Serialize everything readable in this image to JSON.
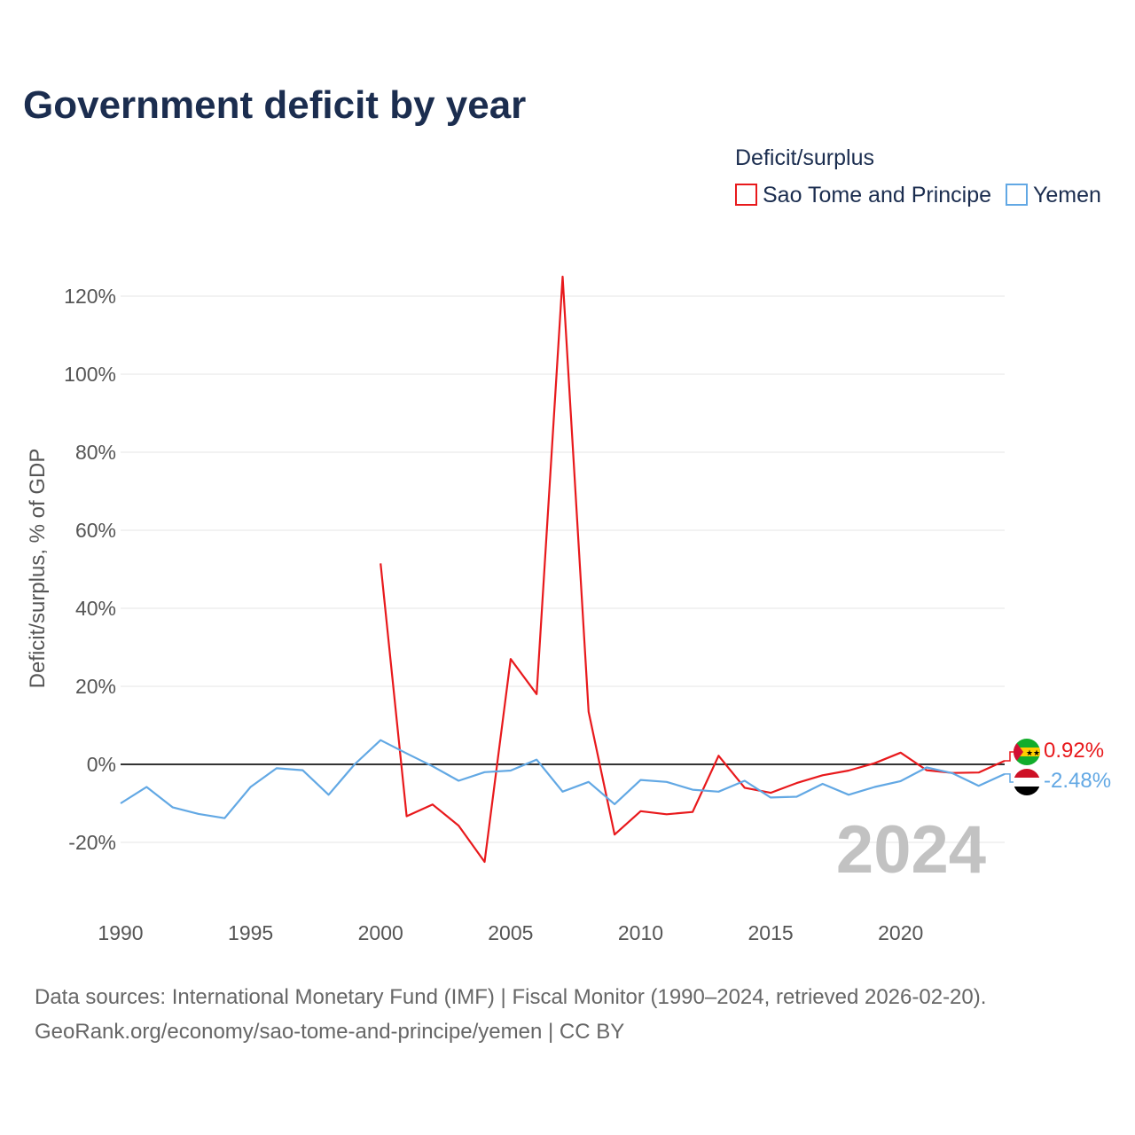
{
  "chart_data": {
    "type": "line",
    "title": "Government deficit by year",
    "legend_title": "Deficit/surplus",
    "legend_position": "top-right",
    "xlabel": "",
    "ylabel": "Deficit/surplus, % of GDP",
    "xlim": [
      1990,
      2024
    ],
    "ylim": [
      -25,
      125
    ],
    "x_ticks": [
      1990,
      1995,
      2000,
      2005,
      2010,
      2015,
      2020
    ],
    "x_tick_labels": [
      "1990",
      "1995",
      "2000",
      "2005",
      "2010",
      "2015",
      "2020"
    ],
    "y_ticks": [
      -20,
      0,
      20,
      40,
      60,
      80,
      100,
      120
    ],
    "y_tick_labels": [
      "-20%",
      "0%",
      "20%",
      "40%",
      "60%",
      "80%",
      "100%",
      "120%"
    ],
    "grid": true,
    "highlight_year": "2024",
    "series": [
      {
        "name": "Sao Tome and Principe",
        "color": "#e8191c",
        "flag_icon": "sao-tome-and-principe-flag-icon",
        "end_label": "0.92%",
        "x": [
          2000,
          2001,
          2002,
          2003,
          2004,
          2005,
          2006,
          2007,
          2008,
          2009,
          2010,
          2011,
          2012,
          2013,
          2014,
          2015,
          2016,
          2017,
          2018,
          2019,
          2020,
          2021,
          2022,
          2023,
          2024
        ],
        "values": [
          51.5,
          -13.3,
          -10.3,
          -15.7,
          -25.0,
          27.0,
          18.0,
          125.0,
          13.5,
          -18.0,
          -12.0,
          -12.8,
          -12.2,
          2.2,
          -6.0,
          -7.3,
          -4.8,
          -2.8,
          -1.6,
          0.3,
          3.0,
          -1.5,
          -2.2,
          -2.1,
          0.92
        ]
      },
      {
        "name": "Yemen",
        "color": "#62a8e4",
        "flag_icon": "yemen-flag-icon",
        "end_label": "-2.48%",
        "x": [
          1990,
          1991,
          1992,
          1993,
          1994,
          1995,
          1996,
          1997,
          1998,
          1999,
          2000,
          2001,
          2002,
          2003,
          2004,
          2005,
          2006,
          2007,
          2008,
          2009,
          2010,
          2011,
          2012,
          2013,
          2014,
          2015,
          2016,
          2017,
          2018,
          2019,
          2020,
          2021,
          2022,
          2023,
          2024
        ],
        "values": [
          -10.0,
          -5.8,
          -11.0,
          -12.7,
          -13.8,
          -5.8,
          -1.0,
          -1.5,
          -7.8,
          0.0,
          6.2,
          2.8,
          -0.5,
          -4.2,
          -2.0,
          -1.6,
          1.2,
          -7.0,
          -4.5,
          -10.2,
          -4.0,
          -4.5,
          -6.5,
          -7.0,
          -4.2,
          -8.5,
          -8.3,
          -5.0,
          -7.8,
          -5.8,
          -4.3,
          -0.8,
          -2.3,
          -5.5,
          -2.48
        ]
      }
    ]
  },
  "source": {
    "line1": "Data sources: International Monetary Fund (IMF) | Fiscal Monitor (1990–2024, retrieved 2026-02-20).",
    "line2": "GeoRank.org/economy/sao-tome-and-principe/yemen | CC BY"
  }
}
